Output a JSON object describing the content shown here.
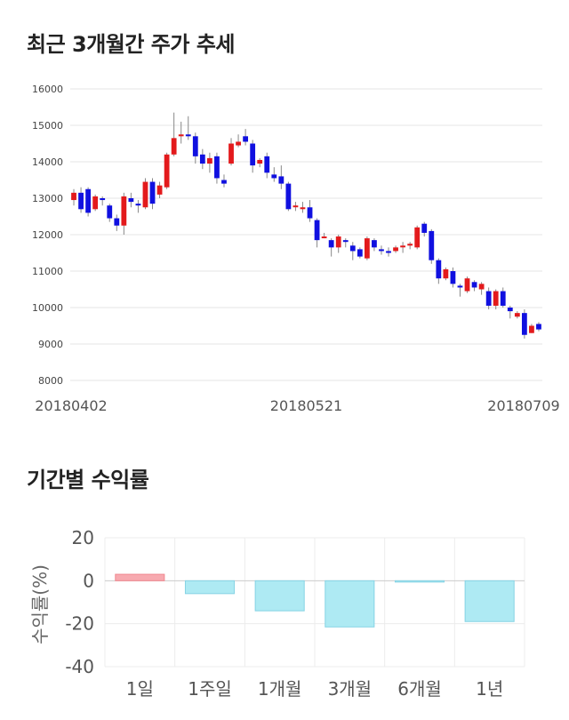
{
  "titles": {
    "price": "최근 3개월간 주가 추세",
    "returns": "기간별 수익률"
  },
  "chart_data": [
    {
      "type": "candlestick",
      "ylim": [
        8000,
        16000
      ],
      "yticks": [
        "16000",
        "15000",
        "14000",
        "13000",
        "12000",
        "11000",
        "10000",
        "9000",
        "8000"
      ],
      "ytick_values": [
        16000,
        15000,
        14000,
        13000,
        12000,
        11000,
        10000,
        9000,
        8000
      ],
      "x_labels": [
        "20180402",
        "20180521",
        "20180709"
      ],
      "grid": true,
      "colors": {
        "up": "#e31a1c",
        "down": "#1010e0",
        "wick": "#888888"
      },
      "candles": [
        [
          12950,
          13150,
          12800,
          13250
        ],
        [
          13150,
          12700,
          12600,
          13300
        ],
        [
          13250,
          12600,
          12500,
          13300
        ],
        [
          12700,
          13050,
          12650,
          13100
        ],
        [
          13000,
          12950,
          12800,
          13050
        ],
        [
          12800,
          12450,
          12350,
          12850
        ],
        [
          12450,
          12250,
          12100,
          12550
        ],
        [
          12250,
          13050,
          12000,
          13150
        ],
        [
          13000,
          12900,
          12750,
          13150
        ],
        [
          12850,
          12800,
          12600,
          12950
        ],
        [
          12750,
          13450,
          12700,
          13550
        ],
        [
          13450,
          12850,
          12700,
          13550
        ],
        [
          13100,
          13350,
          13000,
          13450
        ],
        [
          13300,
          14200,
          13250,
          14250
        ],
        [
          14200,
          14650,
          14150,
          15350
        ],
        [
          14700,
          14750,
          14500,
          15100
        ],
        [
          14750,
          14700,
          14600,
          15250
        ],
        [
          14700,
          14150,
          13950,
          14800
        ],
        [
          14200,
          13950,
          13800,
          14350
        ],
        [
          13950,
          14100,
          13700,
          14250
        ],
        [
          14150,
          13550,
          13400,
          14250
        ],
        [
          13500,
          13400,
          13300,
          13650
        ],
        [
          13950,
          14500,
          13900,
          14650
        ],
        [
          14450,
          14550,
          14400,
          14750
        ],
        [
          14700,
          14550,
          14450,
          14900
        ],
        [
          14500,
          13900,
          13700,
          14600
        ],
        [
          13950,
          14050,
          13850,
          14100
        ],
        [
          14150,
          13700,
          13550,
          14250
        ],
        [
          13650,
          13550,
          13450,
          13850
        ],
        [
          13600,
          13400,
          13250,
          13900
        ],
        [
          13400,
          12700,
          12650,
          13450
        ],
        [
          12800,
          12800,
          12650,
          12900
        ],
        [
          12700,
          12750,
          12600,
          12900
        ],
        [
          12750,
          12450,
          12350,
          12950
        ],
        [
          12400,
          11850,
          11650,
          12450
        ],
        [
          11950,
          11950,
          11900,
          12050
        ],
        [
          11850,
          11650,
          11400,
          11900
        ],
        [
          11650,
          11950,
          11500,
          12000
        ],
        [
          11850,
          11800,
          11650,
          11900
        ],
        [
          11700,
          11550,
          11300,
          11800
        ],
        [
          11600,
          11400,
          11350,
          11650
        ],
        [
          11350,
          11900,
          11300,
          11950
        ],
        [
          11850,
          11650,
          11550,
          11900
        ],
        [
          11600,
          11550,
          11450,
          11700
        ],
        [
          11550,
          11500,
          11400,
          11650
        ],
        [
          11550,
          11650,
          11500,
          11700
        ],
        [
          11700,
          11700,
          11500,
          11800
        ],
        [
          11700,
          11750,
          11600,
          11800
        ],
        [
          11650,
          12200,
          11600,
          12250
        ],
        [
          12300,
          12050,
          11950,
          12350
        ],
        [
          12100,
          11300,
          11200,
          12150
        ],
        [
          11300,
          10800,
          10650,
          11350
        ],
        [
          10800,
          11050,
          10750,
          11100
        ],
        [
          11000,
          10650,
          10550,
          11100
        ],
        [
          10600,
          10550,
          10300,
          10650
        ],
        [
          10450,
          10800,
          10400,
          10850
        ],
        [
          10700,
          10550,
          10450,
          10750
        ],
        [
          10500,
          10650,
          10350,
          10700
        ],
        [
          10450,
          10050,
          9950,
          10550
        ],
        [
          10050,
          10450,
          9950,
          10500
        ],
        [
          10450,
          10050,
          10000,
          10550
        ],
        [
          10000,
          9900,
          9700,
          10050
        ],
        [
          9750,
          9850,
          9700,
          9900
        ],
        [
          9850,
          9250,
          9150,
          9950
        ],
        [
          9300,
          9500,
          9300,
          9550
        ],
        [
          9550,
          9400,
          9350,
          9600
        ]
      ]
    },
    {
      "type": "bar",
      "categories": [
        "1일",
        "1주일",
        "1개월",
        "3개월",
        "6개월",
        "1년"
      ],
      "values": [
        3.0,
        -6.0,
        -14.0,
        -21.5,
        -0.5,
        -19.0
      ],
      "ylabel": "수익률(%)",
      "ylim": [
        -40,
        20
      ],
      "yticks": [
        "20",
        "0",
        "-20",
        "-40"
      ],
      "ytick_values": [
        20,
        0,
        -20,
        -40
      ],
      "grid": true,
      "colors": {
        "positive": "#f7aab0",
        "negative": "#aeeaf3",
        "positive_edge": "#f08890",
        "negative_edge": "#86d3e4"
      }
    }
  ]
}
